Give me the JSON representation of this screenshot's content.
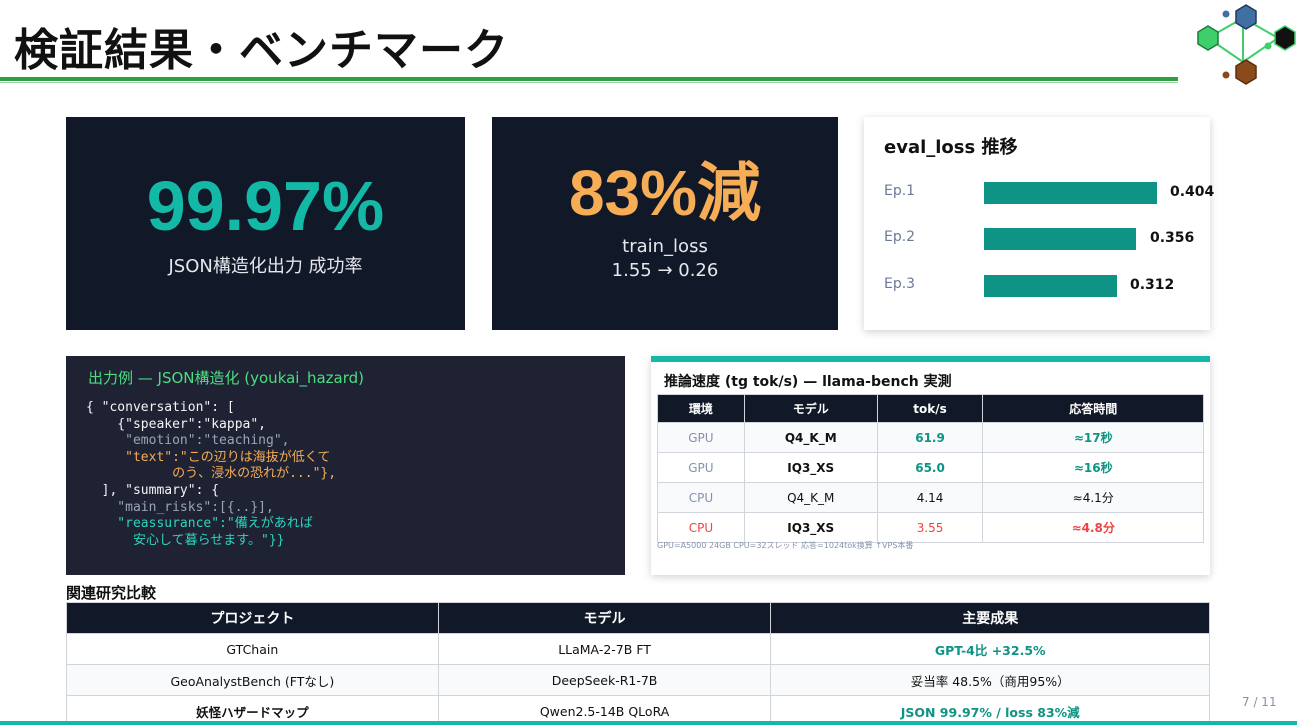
{
  "slide": {
    "title": "検証結果・ベンチマーク",
    "page": "7 / 11"
  },
  "kpis": [
    {
      "value": "99.97%",
      "label": "JSON構造化出力 成功率",
      "color": "#14b8a6"
    },
    {
      "value": "83%減",
      "label": "train_loss",
      "sub": "1.55 → 0.26",
      "color": "#f6ad55"
    }
  ],
  "eval_loss": {
    "title": "eval_loss 推移",
    "rows": [
      {
        "label": "Ep.1",
        "value": "0.404"
      },
      {
        "label": "Ep.2",
        "value": "0.356"
      },
      {
        "label": "Ep.3",
        "value": "0.312"
      }
    ],
    "bar_color": "#0e9384"
  },
  "code_example": {
    "title": "出力例 — JSON構造化 (youkai_hazard)",
    "lines": {
      "l1": "{ \"conversation\": [",
      "l2": "    {\"speaker\":\"kappa\",",
      "l3": "     \"emotion\":\"teaching\",",
      "l4": "     \"text\":\"この辺りは海抜が低くて",
      "l5": "           のう、浸水の恐れが...\"},",
      "l6": "  ], \"summary\": {",
      "l7": "    \"main_risks\":[{..}],",
      "l8": "    \"reassurance\":\"備えがあれば",
      "l9": "      安心して暮らせます。\"}}"
    }
  },
  "speed": {
    "title": "推論速度 (tg tok/s) — llama-bench 実測",
    "headers": [
      "環境",
      "モデル",
      "tok/s",
      "応答時間"
    ],
    "rows": [
      {
        "env": "GPU",
        "model": "Q4_K_M",
        "tps": "61.9",
        "time": "≈17秒"
      },
      {
        "env": "GPU",
        "model": "IQ3_XS",
        "tps": "65.0",
        "time": "≈16秒"
      },
      {
        "env": "CPU",
        "model": "Q4_K_M",
        "tps": "4.14",
        "time": "≈4.1分"
      },
      {
        "env": "CPU",
        "model": "IQ3_XS",
        "tps": "3.55",
        "time": "≈4.8分"
      }
    ],
    "note": "GPU=A5000 24GB  CPU=32スレッド  応答=1024tok換算  ↑VPS本番"
  },
  "related": {
    "title": "関連研究比較",
    "headers": [
      "プロジェクト",
      "モデル",
      "主要成果"
    ],
    "rows": [
      {
        "project": "GTChain",
        "model": "LLaMA-2-7B FT",
        "result": "GPT-4比 +32.5%"
      },
      {
        "project": "GeoAnalystBench (FTなし)",
        "model": "DeepSeek-R1-7B",
        "result": "妥当率 48.5%（商用95%）"
      },
      {
        "project": "妖怪ハザードマップ",
        "model": "Qwen2.5-14B QLoRA",
        "result": "JSON 99.97% / loss 83%減"
      }
    ]
  },
  "colors": {
    "dark_bg": "#111827",
    "accent_teal": "#14b8a6",
    "accent_green": "#2ea043",
    "accent_orange": "#f6ad55",
    "alert_red": "#ef4444"
  }
}
